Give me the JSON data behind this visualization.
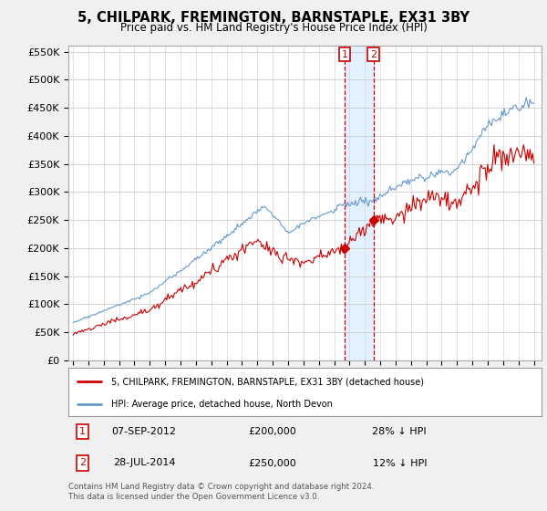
{
  "title": "5, CHILPARK, FREMINGTON, BARNSTAPLE, EX31 3BY",
  "subtitle": "Price paid vs. HM Land Registry's House Price Index (HPI)",
  "legend_line1": "5, CHILPARK, FREMINGTON, BARNSTAPLE, EX31 3BY (detached house)",
  "legend_line2": "HPI: Average price, detached house, North Devon",
  "sale1_label": "1",
  "sale1_date_str": "07-SEP-2012",
  "sale1_year": 2012.69,
  "sale1_price": 200000,
  "sale1_hpi_diff": "28% ↓ HPI",
  "sale2_label": "2",
  "sale2_date_str": "28-JUL-2014",
  "sale2_year": 2014.57,
  "sale2_price": 250000,
  "sale2_hpi_diff": "12% ↓ HPI",
  "footnote": "Contains HM Land Registry data © Crown copyright and database right 2024.\nThis data is licensed under the Open Government Licence v3.0.",
  "price_color": "#cc0000",
  "hpi_color": "#6699cc",
  "marker_box_color": "#cc0000",
  "shade_color": "#ddeeff",
  "vline_color": "#cc0000",
  "background_color": "#f0f0f0",
  "plot_bg_color": "#ffffff",
  "ylim": [
    0,
    560000
  ],
  "yticks": [
    0,
    50000,
    100000,
    150000,
    200000,
    250000,
    300000,
    350000,
    400000,
    450000,
    500000,
    550000
  ],
  "xlim_start": 1994.7,
  "xlim_end": 2025.5
}
